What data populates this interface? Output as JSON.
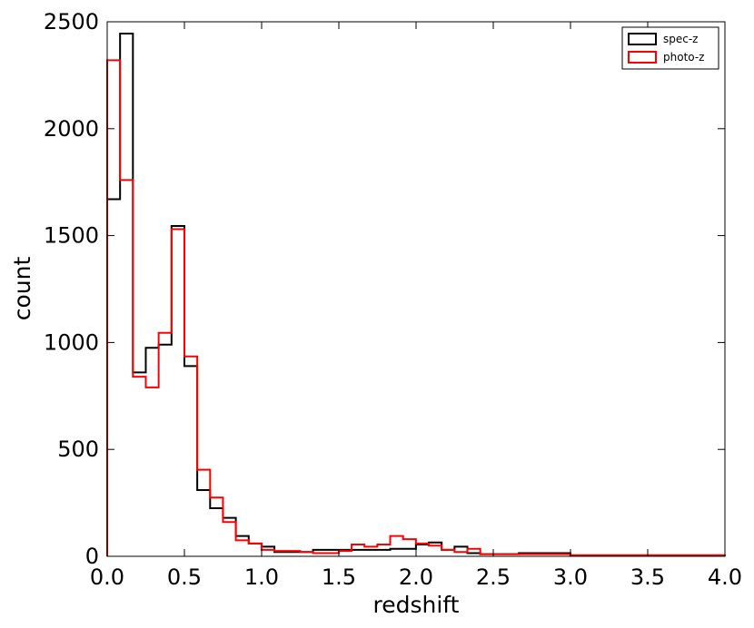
{
  "chart_data": {
    "type": "histogram-step",
    "xlabel": "redshift",
    "ylabel": "count",
    "xlim": [
      0.0,
      4.0
    ],
    "ylim": [
      0,
      2500
    ],
    "xticks": [
      "0.0",
      "0.5",
      "1.0",
      "1.5",
      "2.0",
      "2.5",
      "3.0",
      "3.5",
      "4.0"
    ],
    "yticks": [
      "0",
      "500",
      "1000",
      "1500",
      "2000",
      "2500"
    ],
    "bin_width": 0.0833,
    "x_start": 0.0,
    "legend_position": "top-right",
    "series": [
      {
        "name": "spec-z",
        "color": "#000000",
        "values": [
          1670,
          2445,
          860,
          975,
          990,
          1545,
          890,
          310,
          225,
          180,
          95,
          60,
          45,
          20,
          20,
          20,
          30,
          30,
          30,
          30,
          30,
          30,
          35,
          35,
          55,
          65,
          30,
          45,
          15,
          10,
          10,
          10,
          15,
          15,
          15,
          15,
          5,
          5,
          5,
          5,
          5,
          5,
          5,
          5,
          5,
          5,
          5,
          5
        ]
      },
      {
        "name": "photo-z",
        "color": "#ff0000",
        "values": [
          2320,
          1760,
          840,
          790,
          1045,
          1530,
          935,
          405,
          275,
          160,
          75,
          60,
          30,
          25,
          25,
          20,
          15,
          15,
          25,
          55,
          45,
          55,
          95,
          80,
          60,
          50,
          30,
          20,
          35,
          10,
          10,
          10,
          10,
          10,
          10,
          10,
          5,
          5,
          5,
          5,
          5,
          5,
          5,
          5,
          5,
          5,
          5,
          5
        ]
      }
    ]
  }
}
